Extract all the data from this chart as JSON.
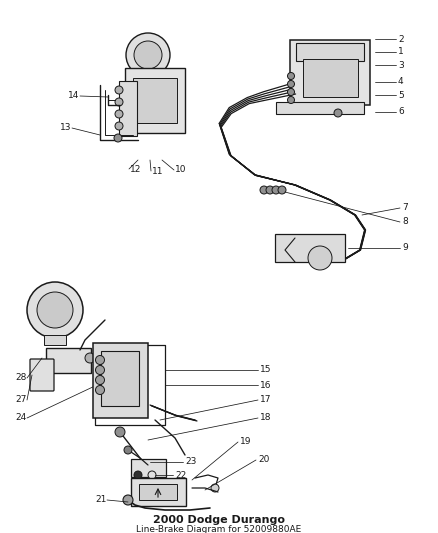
{
  "title": "2000 Dodge Durango",
  "subtitle": "Line-Brake Diagram for 52009880AE",
  "background_color": "#ffffff",
  "line_color": "#1a1a1a",
  "text_color": "#1a1a1a",
  "fig_width": 4.38,
  "fig_height": 5.33,
  "dpi": 100,
  "gray_light": "#c8c8c8",
  "gray_mid": "#a0a0a0",
  "gray_dark": "#707070",
  "gray_fill": "#e8e8e8",
  "gray_fill2": "#d4d4d4",
  "label_fontsize": 6.5,
  "callout_lw": 0.55
}
